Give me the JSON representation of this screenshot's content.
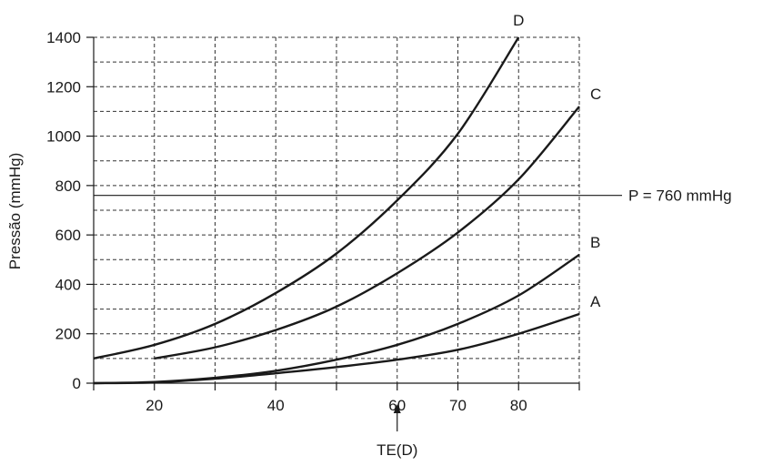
{
  "chart_data": {
    "type": "line",
    "title": "",
    "xlabel": "",
    "ylabel": "Pressão (mmHg)",
    "xlim": [
      10,
      90
    ],
    "ylim": [
      0,
      1400
    ],
    "x_ticks": [
      20,
      40,
      60,
      70,
      80
    ],
    "y_ticks": [
      0,
      200,
      400,
      600,
      800,
      1000,
      1200,
      1400
    ],
    "x_grid": [
      10,
      20,
      30,
      40,
      50,
      60,
      70,
      80,
      90
    ],
    "y_grid": [
      0,
      100,
      200,
      300,
      400,
      500,
      600,
      700,
      800,
      900,
      1000,
      1100,
      1200,
      1300,
      1400
    ],
    "grid": true,
    "series": [
      {
        "name": "A",
        "x": [
          10,
          20,
          30,
          40,
          50,
          60,
          70,
          80,
          90
        ],
        "y": [
          0,
          3,
          18,
          40,
          65,
          95,
          135,
          200,
          280
        ]
      },
      {
        "name": "B",
        "x": [
          10,
          20,
          30,
          40,
          50,
          60,
          70,
          80,
          90
        ],
        "y": [
          0,
          5,
          22,
          50,
          95,
          155,
          240,
          355,
          520
        ]
      },
      {
        "name": "C",
        "x": [
          20,
          30,
          40,
          50,
          60,
          70,
          80,
          90
        ],
        "y": [
          100,
          145,
          215,
          310,
          445,
          610,
          825,
          1120
        ]
      },
      {
        "name": "D",
        "x": [
          10,
          20,
          30,
          40,
          50,
          60,
          70,
          80
        ],
        "y": [
          100,
          155,
          240,
          365,
          525,
          740,
          1010,
          1400
        ]
      }
    ],
    "reference_line": {
      "y": 760,
      "label": "P = 760 mmHg"
    },
    "annotation": {
      "x": 60,
      "label": "TE(D)"
    }
  }
}
